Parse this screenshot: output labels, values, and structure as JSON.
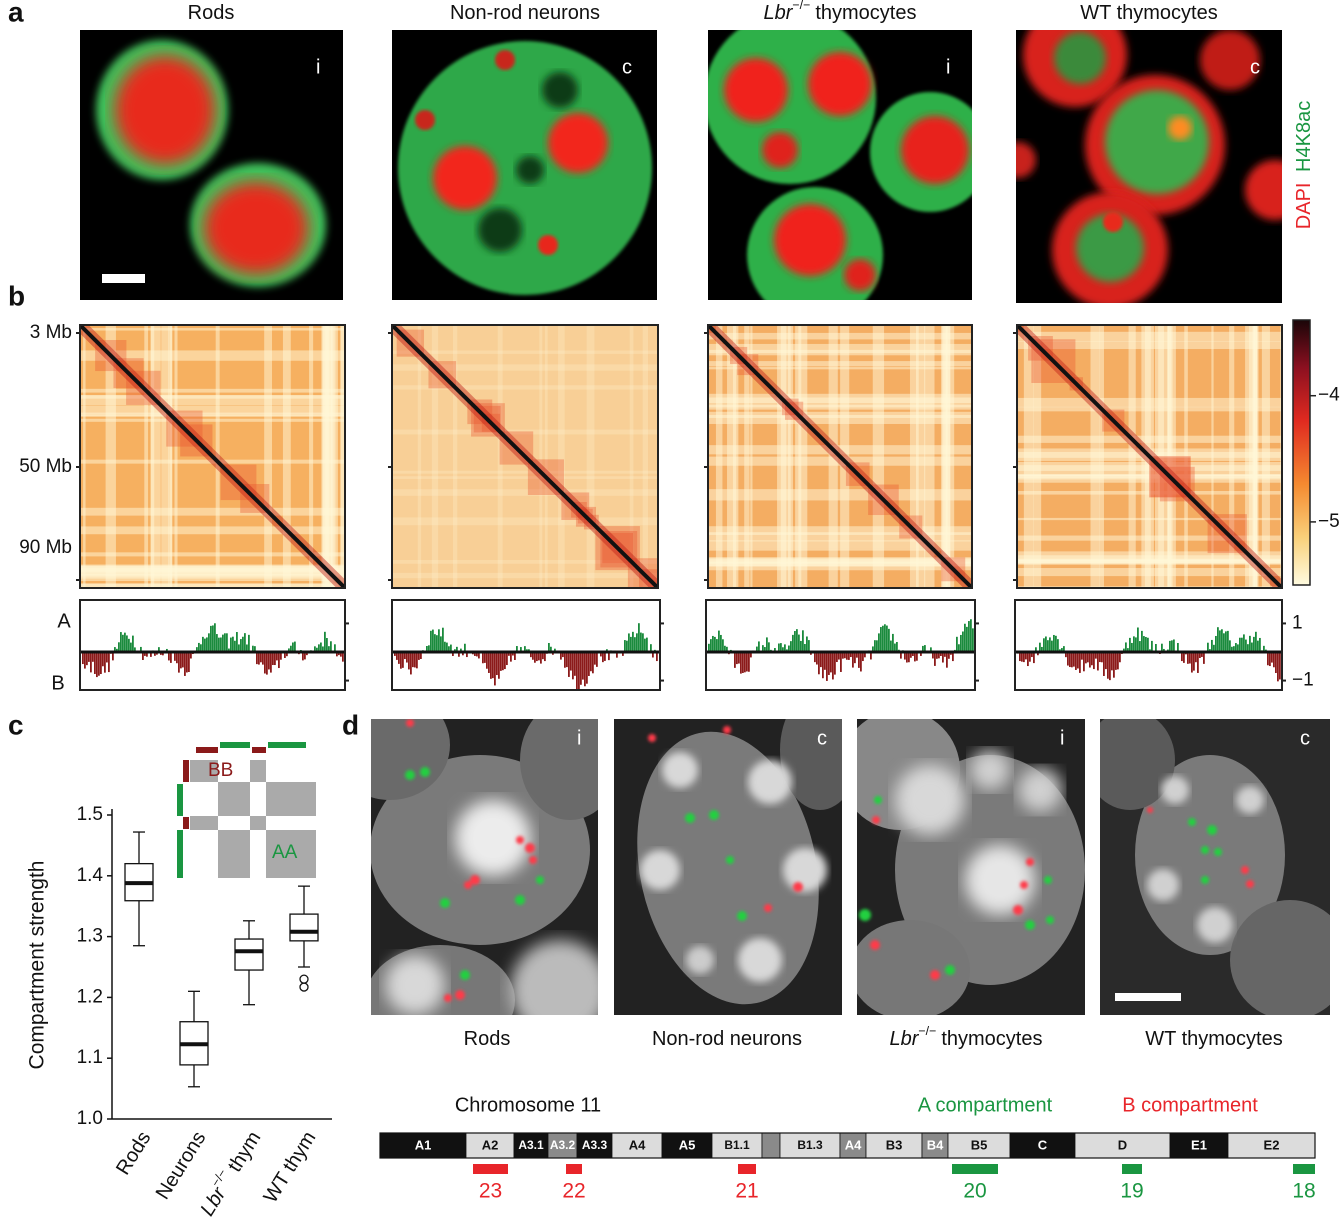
{
  "panel_labels": {
    "a": "a",
    "b": "b",
    "c": "c",
    "d": "d"
  },
  "panel_a": {
    "titles": [
      [
        "Rods"
      ],
      [
        "Non-rod neurons"
      ],
      [
        "Lbr",
        "−/−",
        "thymocytes"
      ],
      [
        "WT thymocytes"
      ]
    ],
    "corner_marks": [
      "i",
      "c",
      "i",
      "c"
    ],
    "stain_labels": [
      {
        "text": "DAPI",
        "color": "#e8252a"
      },
      {
        "text": "H4K8ac",
        "color": "#1a9641"
      }
    ]
  },
  "panel_b": {
    "y_labels": [
      "3 Mb",
      "50 Mb",
      "90 Mb"
    ],
    "colorbar": {
      "lim": [
        -5.5,
        -3.4
      ],
      "ticks": [
        {
          "value": -4,
          "label": "−4"
        },
        {
          "value": -5,
          "label": "−5"
        }
      ]
    },
    "track": {
      "labels": [
        "A",
        "B"
      ],
      "ylim": [
        -1.33,
        1.82
      ],
      "ticks": [
        1,
        {
          "value": -1,
          "label": "−1"
        }
      ],
      "colors": [
        "#1a8a3c",
        "#8b1a1a"
      ]
    }
  },
  "chart_data": {
    "type": "box",
    "y_label": "Compartment strength",
    "categories": [
      [
        "Rods"
      ],
      [
        "Neurons"
      ],
      [
        "Lbr",
        "−/−",
        "thym"
      ],
      [
        "WT thym"
      ]
    ],
    "whisker_low": [
      1.285,
      1.053,
      1.188,
      1.25
    ],
    "q1": [
      1.359,
      1.089,
      1.245,
      1.293
    ],
    "median": [
      1.388,
      1.123,
      1.276,
      1.308
    ],
    "q3": [
      1.42,
      1.16,
      1.296,
      1.337
    ],
    "whisker_high": [
      1.472,
      1.21,
      1.326,
      1.383
    ],
    "outliers": [
      [],
      [],
      [],
      [
        1.23,
        1.217
      ]
    ],
    "ylim": [
      1.0,
      1.5
    ],
    "yticks": [
      {
        "value": 1,
        "label": "1.0"
      },
      1.1,
      1.2,
      1.3,
      1.4,
      1.5
    ],
    "inset_labels": [
      {
        "text": "BB",
        "color": "#8b1a1a"
      },
      {
        "text": "AA",
        "color": "#1a9641"
      }
    ]
  },
  "panel_d": {
    "titles": [
      [
        "Rods"
      ],
      [
        "Non-rod neurons"
      ],
      [
        "Lbr",
        "−/−",
        "thymocytes"
      ],
      [
        "WT thymocytes"
      ]
    ],
    "corner_marks": [
      "i",
      "c",
      "i",
      "c"
    ],
    "chromosome": {
      "title": "Chromosome 11",
      "legend": [
        {
          "name": "A compartment",
          "color": "#1a9641"
        },
        {
          "name": "B compartment",
          "color": "#e8252a"
        }
      ],
      "bands": [
        "A1",
        "A2",
        "A3.1",
        "A3.2",
        "A3.3",
        "A4",
        "A5",
        "B1.1",
        null,
        "B1.3",
        "A4",
        "B3",
        "B4",
        "B5",
        "C",
        "D",
        "E1",
        "E2"
      ],
      "shades": [
        "black",
        "light",
        "black",
        "mid",
        "black",
        "light",
        "black",
        "light",
        "mid",
        "light",
        "mid",
        "light",
        "mid",
        "light",
        "black",
        "light",
        "black",
        "light"
      ],
      "probes": [
        {
          "number": 23,
          "compartment": 1
        },
        {
          "number": 22,
          "compartment": 1
        },
        {
          "number": 21,
          "compartment": 1
        },
        {
          "number": 20,
          "compartment": 0
        },
        {
          "number": 19,
          "compartment": 0
        },
        {
          "number": 18,
          "compartment": 0
        }
      ]
    }
  }
}
